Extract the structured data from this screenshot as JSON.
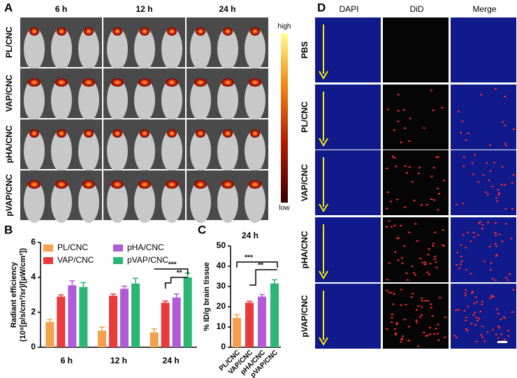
{
  "panel_a": {
    "letter": "A",
    "columns": [
      "6 h",
      "12 h",
      "24 h"
    ],
    "rows": [
      "PL/CNC",
      "VAP/CNC",
      "pHA/CNC",
      "pVAP/CNC"
    ],
    "scale_high": "high",
    "scale_low": "low"
  },
  "panel_d": {
    "letter": "D",
    "columns": [
      "DAPI",
      "DiD",
      "Merge"
    ],
    "rows": [
      "PBS",
      "PL/CNC",
      "VAP/CNC",
      "pHA/CNC",
      "pVAP/CNC"
    ]
  },
  "chart_data": [
    {
      "type": "bar",
      "panel": "B",
      "ylabel": [
        "Radiant efficiency",
        "(10⁸[p/s/cm²/sr]/[μW/cm²])"
      ],
      "categories": [
        "6 h",
        "12 h",
        "24 h"
      ],
      "series": [
        {
          "name": "PL/CNC",
          "color": "#f6a04d",
          "values": [
            1.45,
            0.95,
            0.85
          ],
          "errors": [
            0.15,
            0.2,
            0.2
          ]
        },
        {
          "name": "VAP/CNC",
          "color": "#eb3a3d",
          "values": [
            2.9,
            2.95,
            2.55
          ],
          "errors": [
            0.1,
            0.1,
            0.1
          ]
        },
        {
          "name": "pHA/CNC",
          "color": "#b25bd8",
          "values": [
            3.55,
            3.35,
            2.85
          ],
          "errors": [
            0.25,
            0.15,
            0.2
          ]
        },
        {
          "name": "pVAP/CNC",
          "color": "#2bb673",
          "values": [
            3.45,
            3.65,
            4.0
          ],
          "errors": [
            0.25,
            0.3,
            0.25
          ]
        }
      ],
      "annotations": [
        "***",
        "**"
      ],
      "ylim": [
        0,
        6
      ],
      "yticks": [
        0,
        2,
        4,
        6
      ]
    },
    {
      "type": "bar",
      "panel": "C",
      "title": "24 h",
      "ylabel": "% ID/g brain tissue",
      "categories": [
        "PL/CNC",
        "VAP/CNC",
        "pHA/CNC",
        "pVAP/CNC"
      ],
      "values": [
        14.5,
        22,
        25,
        31.5
      ],
      "errors": [
        1.5,
        0.7,
        1,
        1.8
      ],
      "colors": [
        "#f6a04d",
        "#eb3a3d",
        "#b25bd8",
        "#2bb673"
      ],
      "annotations": [
        "***",
        "**"
      ],
      "ylim": [
        0,
        50
      ],
      "yticks": [
        0,
        10,
        20,
        30,
        40,
        50
      ]
    }
  ]
}
